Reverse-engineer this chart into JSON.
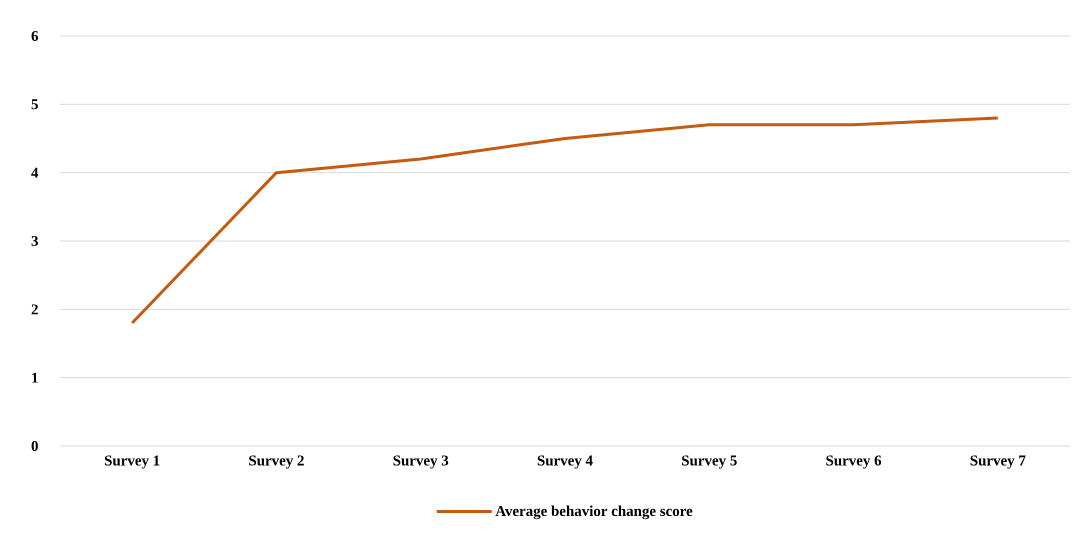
{
  "chart_data": {
    "type": "line",
    "categories": [
      "Survey 1",
      "Survey 2",
      "Survey 3",
      "Survey 4",
      "Survey 5",
      "Survey 6",
      "Survey 7"
    ],
    "series": [
      {
        "name": "Average behavior change score",
        "color": "#c55a11",
        "values": [
          1.8,
          4.0,
          4.2,
          4.5,
          4.7,
          4.7,
          4.8
        ]
      }
    ],
    "ylim": [
      0,
      6
    ],
    "yticks": [
      0,
      1,
      2,
      3,
      4,
      5,
      6
    ],
    "grid": "y",
    "legend": "bottom",
    "marker": "none",
    "line_style": "solid"
  }
}
